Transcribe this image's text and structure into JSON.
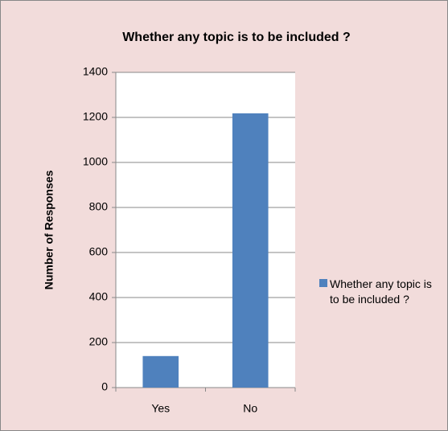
{
  "chart_data": {
    "type": "bar",
    "title": "Whether any topic is to be included ?",
    "y_label": "Number of Responses",
    "categories": [
      "Yes",
      "No"
    ],
    "series": [
      {
        "name": "Whether any topic is to be included ?",
        "color": "#4f81bd",
        "values": [
          140,
          1218
        ]
      }
    ],
    "ylim": [
      0,
      1400
    ],
    "yticks": [
      0,
      200,
      400,
      600,
      800,
      1000,
      1200,
      1400
    ],
    "grid": true,
    "legend": "right"
  }
}
